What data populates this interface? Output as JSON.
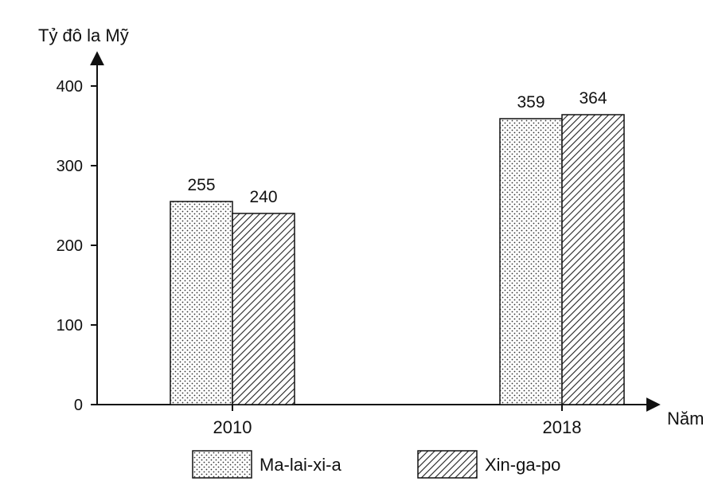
{
  "chart_data": {
    "type": "bar",
    "ylabel": "Tỷ đô la Mỹ",
    "xlabel": "Năm",
    "categories": [
      "2010",
      "2018"
    ],
    "series": [
      {
        "name": "Ma-lai-xi-a",
        "values": [
          255,
          359
        ],
        "pattern": "dots"
      },
      {
        "name": "Xin-ga-po",
        "values": [
          240,
          364
        ],
        "pattern": "hatch"
      }
    ],
    "ylim": [
      0,
      400
    ],
    "yticks": [
      0,
      100,
      200,
      300,
      400
    ],
    "grid": false,
    "legend": "bottom"
  },
  "colors": {
    "ink": "#111111",
    "bar_fill": "#ffffff"
  }
}
